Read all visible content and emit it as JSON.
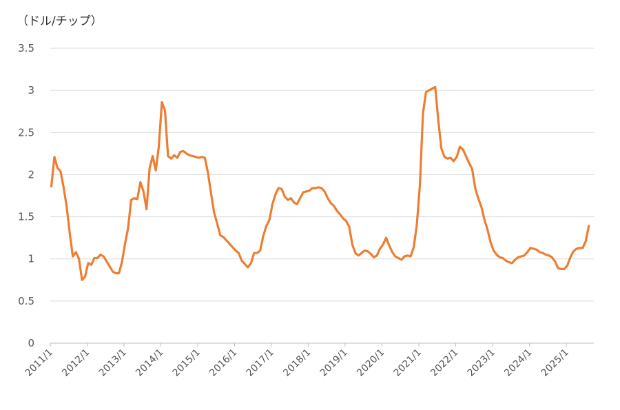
{
  "chart_data": {
    "type": "line",
    "title": "",
    "ylabel": "（ドル/チップ）",
    "xlabel": "",
    "ylim": [
      0,
      3.5
    ],
    "y_ticks": [
      "0",
      "0.5",
      "1",
      "1.5",
      "2",
      "2.5",
      "3",
      "3.5"
    ],
    "x_ticks": [
      "2011/1",
      "2012/1",
      "2013/1",
      "2014/1",
      "2015/1",
      "2016/1",
      "2017/1",
      "2018/1",
      "2019/1",
      "2020/1",
      "2021/1",
      "2022/1",
      "2023/1",
      "2024/1",
      "2025/1"
    ],
    "grid": true,
    "color": "#ED7D31",
    "series": [
      {
        "values": [
          1.86,
          2.21,
          2.08,
          2.04,
          1.85,
          1.62,
          1.3,
          1.03,
          1.08,
          1.0,
          0.75,
          0.79,
          0.95,
          0.93,
          1.01,
          1.01,
          1.05,
          1.03,
          0.97,
          0.91,
          0.85,
          0.83,
          0.83,
          0.96,
          1.18,
          1.37,
          1.7,
          1.72,
          1.71,
          1.91,
          1.8,
          1.59,
          2.08,
          2.22,
          2.05,
          2.33,
          2.86,
          2.76,
          2.22,
          2.19,
          2.23,
          2.2,
          2.27,
          2.28,
          2.25,
          2.23,
          2.22,
          2.21,
          2.2,
          2.21,
          2.2,
          2.02,
          1.78,
          1.55,
          1.42,
          1.28,
          1.26,
          1.22,
          1.18,
          1.14,
          1.1,
          1.07,
          0.98,
          0.94,
          0.9,
          0.95,
          1.07,
          1.07,
          1.1,
          1.27,
          1.39,
          1.46,
          1.65,
          1.77,
          1.84,
          1.83,
          1.74,
          1.7,
          1.72,
          1.67,
          1.65,
          1.72,
          1.79,
          1.8,
          1.81,
          1.84,
          1.84,
          1.85,
          1.84,
          1.8,
          1.72,
          1.66,
          1.63,
          1.57,
          1.53,
          1.48,
          1.45,
          1.38,
          1.17,
          1.07,
          1.04,
          1.07,
          1.1,
          1.09,
          1.06,
          1.02,
          1.04,
          1.12,
          1.17,
          1.25,
          1.16,
          1.08,
          1.03,
          1.01,
          0.99,
          1.03,
          1.04,
          1.03,
          1.14,
          1.4,
          1.87,
          2.73,
          2.98,
          3.0,
          3.02,
          3.04,
          2.64,
          2.31,
          2.21,
          2.19,
          2.2,
          2.16,
          2.21,
          2.33,
          2.3,
          2.22,
          2.14,
          2.07,
          1.84,
          1.72,
          1.62,
          1.47,
          1.35,
          1.2,
          1.1,
          1.05,
          1.02,
          1.01,
          0.98,
          0.96,
          0.95,
          0.99,
          1.02,
          1.03,
          1.04,
          1.08,
          1.13,
          1.12,
          1.11,
          1.08,
          1.07,
          1.05,
          1.04,
          1.02,
          0.97,
          0.89,
          0.88,
          0.88,
          0.92,
          1.02,
          1.09,
          1.12,
          1.13,
          1.13,
          1.21,
          1.39
        ]
      }
    ]
  }
}
